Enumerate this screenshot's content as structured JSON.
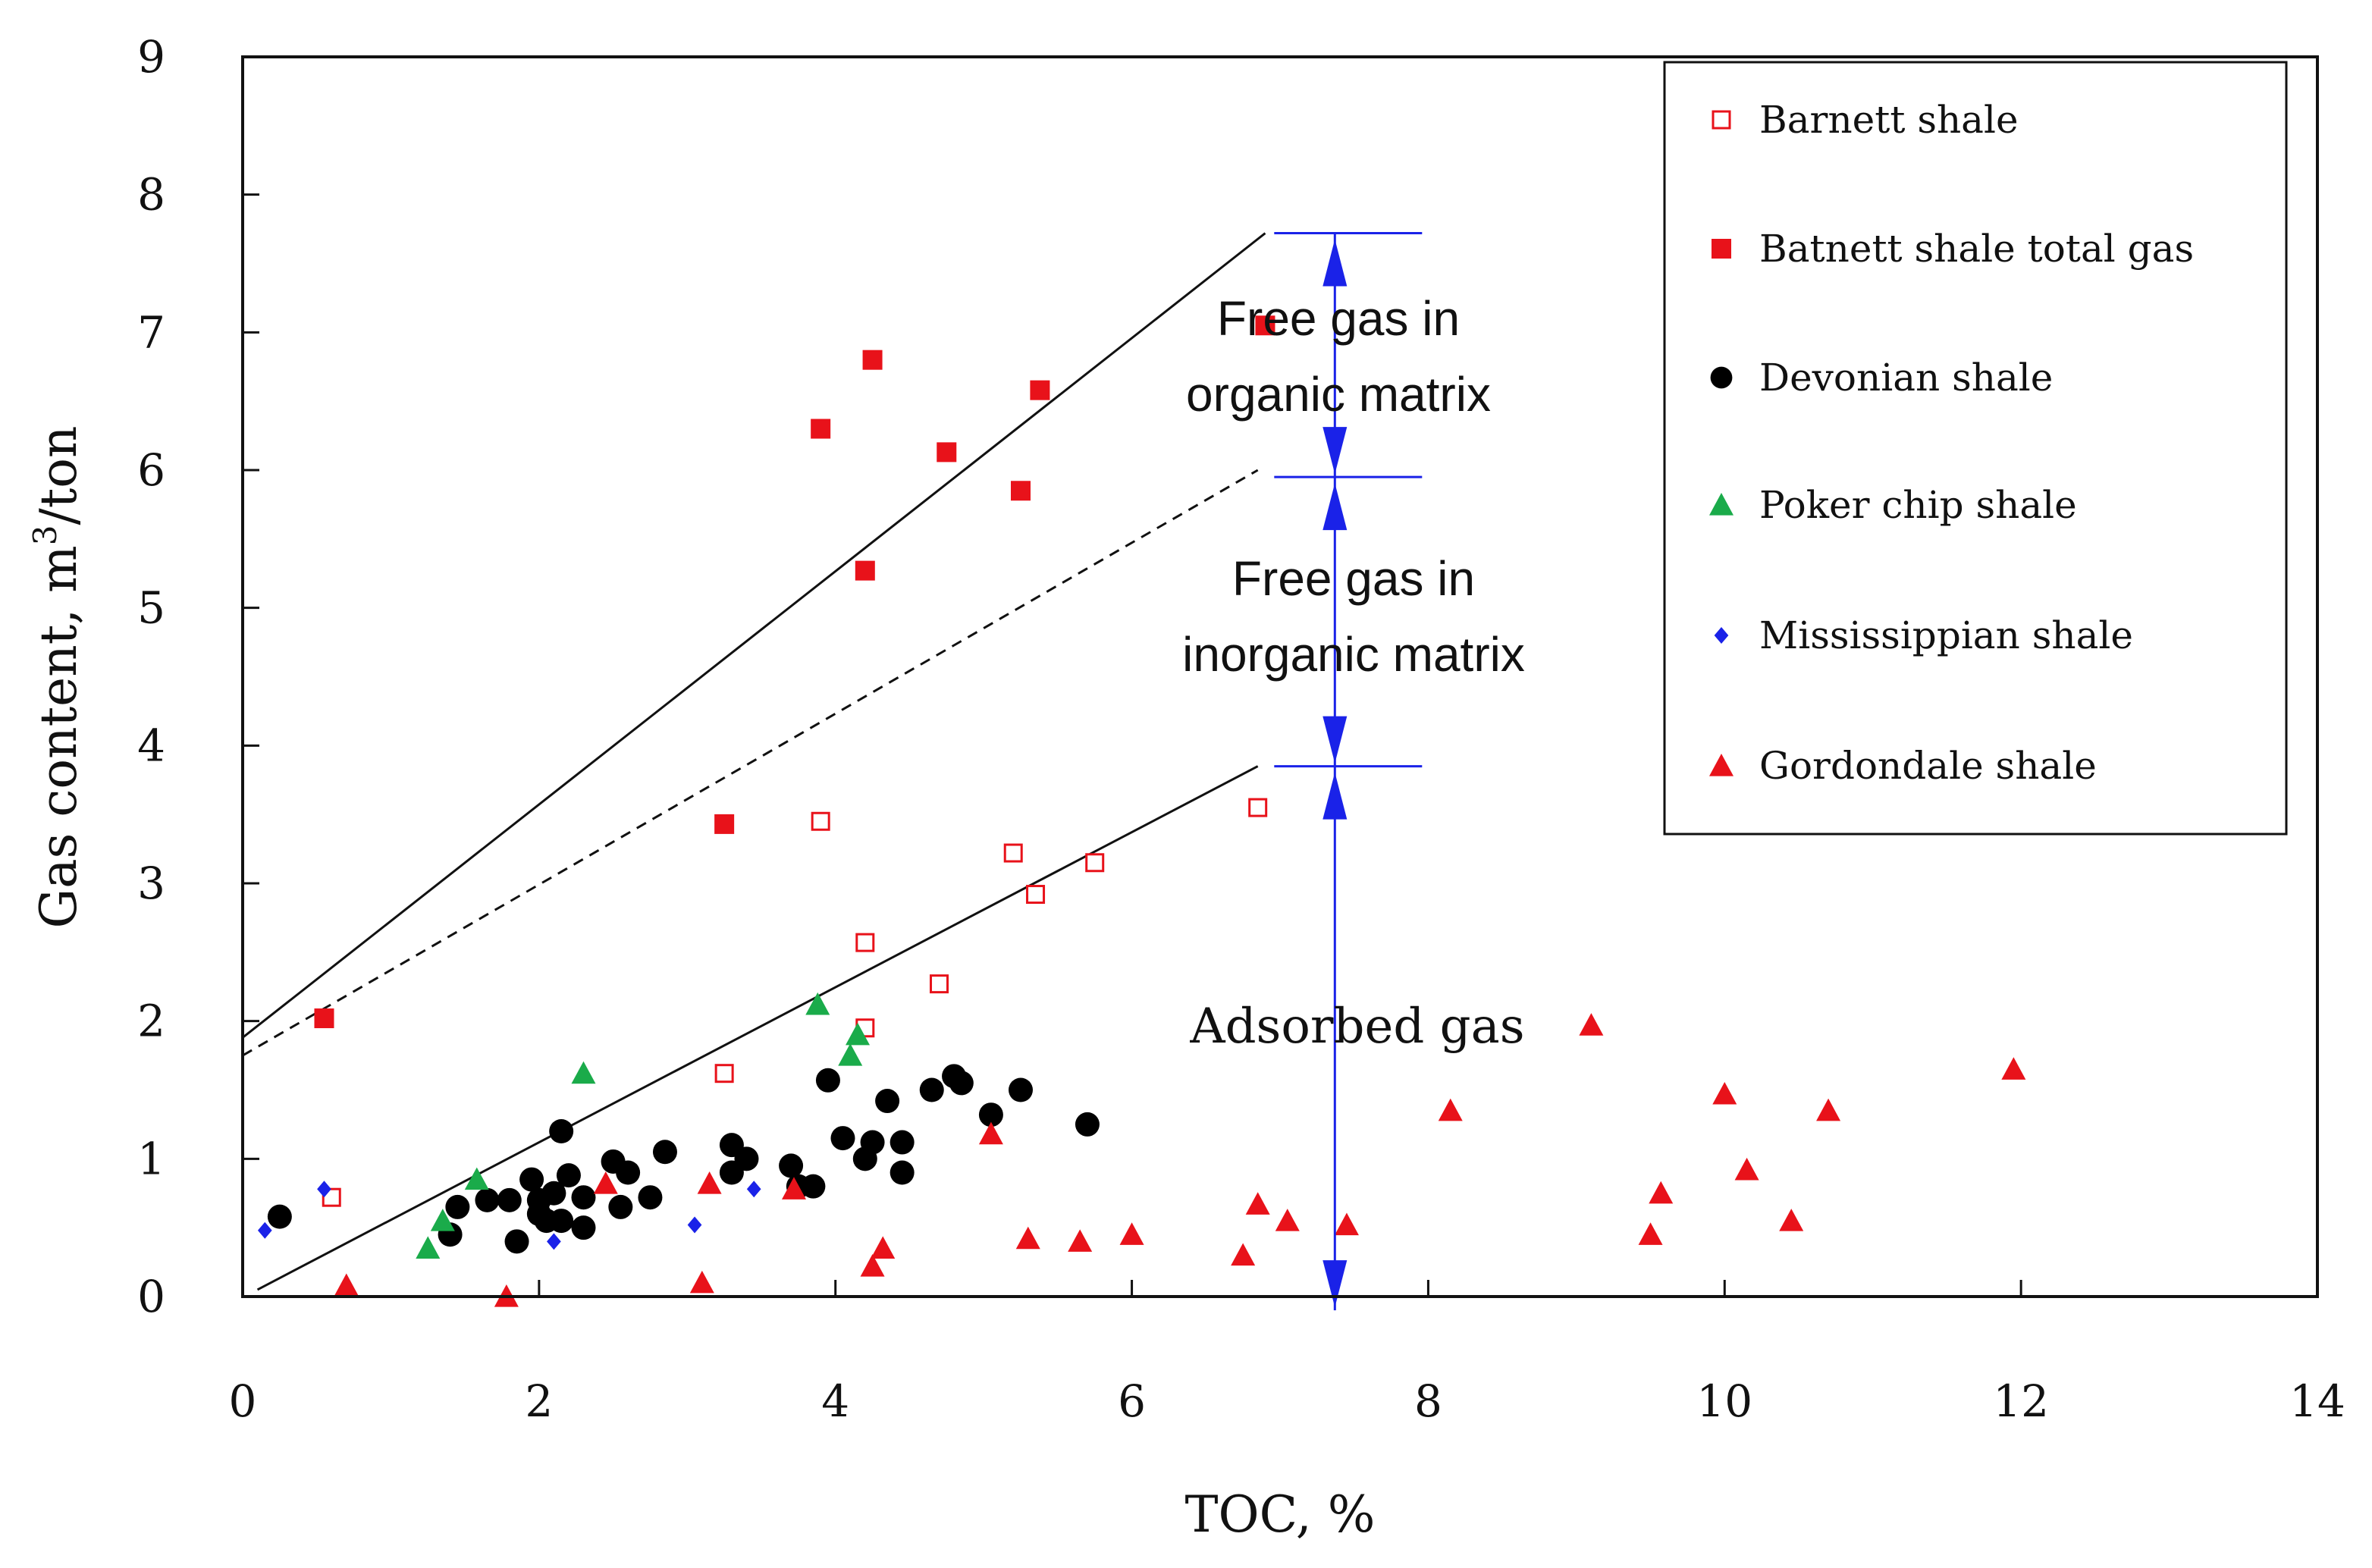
{
  "chart_data": {
    "type": "scatter",
    "title": "",
    "xlabel": "TOC, %",
    "ylabel_prefix": "Gas content, m",
    "ylabel_sup": "3",
    "ylabel_suffix": "/ton",
    "xlim": [
      0,
      14
    ],
    "ylim": [
      0,
      9
    ],
    "xticks": [
      "0",
      "2",
      "4",
      "6",
      "8",
      "10",
      "12",
      "14"
    ],
    "yticks": [
      "0",
      "1",
      "2",
      "3",
      "4",
      "5",
      "6",
      "7",
      "8",
      "9"
    ],
    "legend_position": "top-right",
    "series": [
      {
        "name": "Barnett shale",
        "marker": "square-open",
        "color": "#e8121a",
        "points": [
          [
            0.6,
            0.72
          ],
          [
            3.25,
            1.62
          ],
          [
            3.9,
            3.45
          ],
          [
            4.2,
            2.57
          ],
          [
            4.2,
            1.95
          ],
          [
            4.7,
            2.27
          ],
          [
            5.2,
            3.22
          ],
          [
            5.35,
            2.92
          ],
          [
            5.75,
            3.15
          ],
          [
            6.85,
            3.55
          ]
        ]
      },
      {
        "name": "Batnett shale total gas",
        "marker": "square",
        "color": "#e8121a",
        "points": [
          [
            0.55,
            2.02
          ],
          [
            3.25,
            3.43
          ],
          [
            3.9,
            6.3
          ],
          [
            4.2,
            5.27
          ],
          [
            4.25,
            6.8
          ],
          [
            4.75,
            6.13
          ],
          [
            5.25,
            5.85
          ],
          [
            5.38,
            6.58
          ],
          [
            6.9,
            7.05
          ]
        ]
      },
      {
        "name": "Devonian shale",
        "marker": "circle",
        "color": "#000000",
        "points": [
          [
            0.25,
            0.58
          ],
          [
            1.4,
            0.45
          ],
          [
            1.45,
            0.65
          ],
          [
            1.65,
            0.7
          ],
          [
            1.8,
            0.7
          ],
          [
            1.85,
            0.4
          ],
          [
            1.95,
            0.85
          ],
          [
            2.0,
            0.7
          ],
          [
            2.0,
            0.6
          ],
          [
            2.05,
            0.55
          ],
          [
            2.1,
            0.75
          ],
          [
            2.15,
            1.2
          ],
          [
            2.15,
            0.55
          ],
          [
            2.2,
            0.88
          ],
          [
            2.3,
            0.5
          ],
          [
            2.3,
            0.72
          ],
          [
            2.5,
            0.98
          ],
          [
            2.55,
            0.65
          ],
          [
            2.6,
            0.9
          ],
          [
            2.75,
            0.72
          ],
          [
            2.85,
            1.05
          ],
          [
            3.3,
            0.9
          ],
          [
            3.3,
            1.1
          ],
          [
            3.4,
            1.0
          ],
          [
            3.7,
            0.95
          ],
          [
            3.75,
            0.8
          ],
          [
            3.85,
            0.8
          ],
          [
            3.95,
            1.57
          ],
          [
            4.05,
            1.15
          ],
          [
            4.2,
            1.0
          ],
          [
            4.25,
            1.12
          ],
          [
            4.35,
            1.42
          ],
          [
            4.45,
            1.12
          ],
          [
            4.45,
            0.9
          ],
          [
            4.65,
            1.5
          ],
          [
            4.8,
            1.6
          ],
          [
            4.85,
            1.55
          ],
          [
            5.05,
            1.32
          ],
          [
            5.25,
            1.5
          ],
          [
            5.7,
            1.25
          ]
        ]
      },
      {
        "name": "Poker chip shale",
        "marker": "triangle",
        "color": "#1aab4a",
        "points": [
          [
            1.25,
            0.35
          ],
          [
            1.35,
            0.55
          ],
          [
            1.58,
            0.85
          ],
          [
            2.3,
            1.62
          ],
          [
            3.88,
            2.12
          ],
          [
            4.1,
            1.75
          ],
          [
            4.15,
            1.9
          ]
        ]
      },
      {
        "name": "Mississippian shale",
        "marker": "diamond",
        "color": "#1a22e8",
        "points": [
          [
            0.15,
            0.48
          ],
          [
            0.55,
            0.78
          ],
          [
            2.1,
            0.4
          ],
          [
            3.05,
            0.52
          ],
          [
            3.45,
            0.78
          ]
        ]
      },
      {
        "name": "Gordondale shale",
        "marker": "triangle",
        "color": "#e8121a",
        "points": [
          [
            0.7,
            0.08
          ],
          [
            1.78,
            0.0
          ],
          [
            2.45,
            0.82
          ],
          [
            3.1,
            0.1
          ],
          [
            3.15,
            0.82
          ],
          [
            3.72,
            0.78
          ],
          [
            4.25,
            0.22
          ],
          [
            4.32,
            0.35
          ],
          [
            5.05,
            1.18
          ],
          [
            5.3,
            0.42
          ],
          [
            5.65,
            0.4
          ],
          [
            6.0,
            0.45
          ],
          [
            6.75,
            0.3
          ],
          [
            6.85,
            0.67
          ],
          [
            7.05,
            0.55
          ],
          [
            7.45,
            0.52
          ],
          [
            8.15,
            1.35
          ],
          [
            9.1,
            1.97
          ],
          [
            9.5,
            0.45
          ],
          [
            9.57,
            0.75
          ],
          [
            10.0,
            1.47
          ],
          [
            10.15,
            0.92
          ],
          [
            10.45,
            0.55
          ],
          [
            10.7,
            1.35
          ],
          [
            11.95,
            1.65
          ]
        ]
      }
    ],
    "lines": [
      {
        "name": "upper-line",
        "style": "solid",
        "x": [
          0,
          6.9
        ],
        "y": [
          1.88,
          7.72
        ]
      },
      {
        "name": "middle-line",
        "style": "dashed",
        "x": [
          0,
          6.85
        ],
        "y": [
          1.75,
          6.0
        ]
      },
      {
        "name": "lower-line",
        "style": "solid",
        "x": [
          0.1,
          6.85
        ],
        "y": [
          0.05,
          3.85
        ]
      }
    ],
    "ranges": [
      {
        "label": "Free gas in organic matrix",
        "x": 7.37,
        "y_from": 5.95,
        "y_to": 7.72
      },
      {
        "label": "Free gas in inorganic matrix",
        "x": 7.37,
        "y_from": 3.85,
        "y_to": 5.95
      },
      {
        "label": "Adsorbed gas",
        "x": 7.37,
        "y_from": -0.1,
        "y_to": 3.85
      }
    ],
    "annotations": {
      "free_organic": [
        "Free gas in",
        "organic matrix"
      ],
      "free_inorganic": [
        "Free gas in",
        "inorganic matrix"
      ],
      "adsorbed": "Adsorbed gas"
    }
  }
}
